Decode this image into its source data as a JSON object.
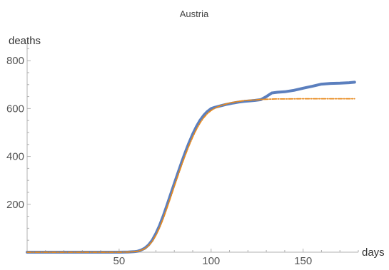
{
  "chart_data": {
    "type": "line",
    "title": "Austria",
    "xlabel": "days",
    "ylabel": "deaths",
    "xlim": [
      0,
      180
    ],
    "ylim": [
      0,
      860
    ],
    "x_ticks": [
      50,
      100,
      150
    ],
    "y_ticks": [
      200,
      400,
      600,
      800
    ],
    "grid": false,
    "series": [
      {
        "color": "#5b7fbe",
        "style": "solid-thick",
        "x": [
          0,
          20,
          40,
          50,
          55,
          58,
          60,
          62,
          64,
          66,
          68,
          70,
          72,
          74,
          76,
          78,
          80,
          82,
          84,
          86,
          88,
          90,
          92,
          94,
          96,
          98,
          100,
          102,
          104,
          106,
          108,
          110,
          112,
          115,
          118,
          121,
          124,
          127,
          130,
          133,
          136,
          140,
          145,
          150,
          155,
          160,
          165,
          170,
          175,
          178
        ],
        "y": [
          0,
          0,
          0,
          0,
          1,
          2,
          4,
          9,
          17,
          30,
          50,
          78,
          112,
          152,
          196,
          242,
          287,
          332,
          376,
          418,
          457,
          493,
          525,
          551,
          572,
          588,
          600,
          605,
          609,
          613,
          617,
          620,
          623,
          627,
          630,
          632,
          634,
          637,
          650,
          665,
          668,
          670,
          676,
          685,
          693,
          702,
          705,
          706,
          708,
          710
        ]
      },
      {
        "color": "#e8891c",
        "style": "dashed",
        "x": [
          0,
          20,
          40,
          50,
          55,
          58,
          60,
          62,
          64,
          66,
          68,
          70,
          72,
          74,
          76,
          78,
          80,
          82,
          84,
          86,
          88,
          90,
          92,
          94,
          96,
          98,
          100,
          102,
          104,
          106,
          108,
          110,
          112,
          115,
          118,
          121,
          124,
          127,
          130,
          135,
          140,
          150,
          160,
          170,
          178
        ],
        "y": [
          0,
          0,
          0,
          0,
          1,
          2,
          4,
          8,
          15,
          27,
          45,
          70,
          102,
          141,
          184,
          229,
          275,
          320,
          364,
          406,
          445,
          481,
          513,
          540,
          562,
          579,
          592,
          601,
          608,
          614,
          619,
          623,
          626,
          630,
          633,
          635,
          636,
          638,
          639,
          640,
          640,
          641,
          641,
          641,
          641
        ]
      }
    ]
  }
}
